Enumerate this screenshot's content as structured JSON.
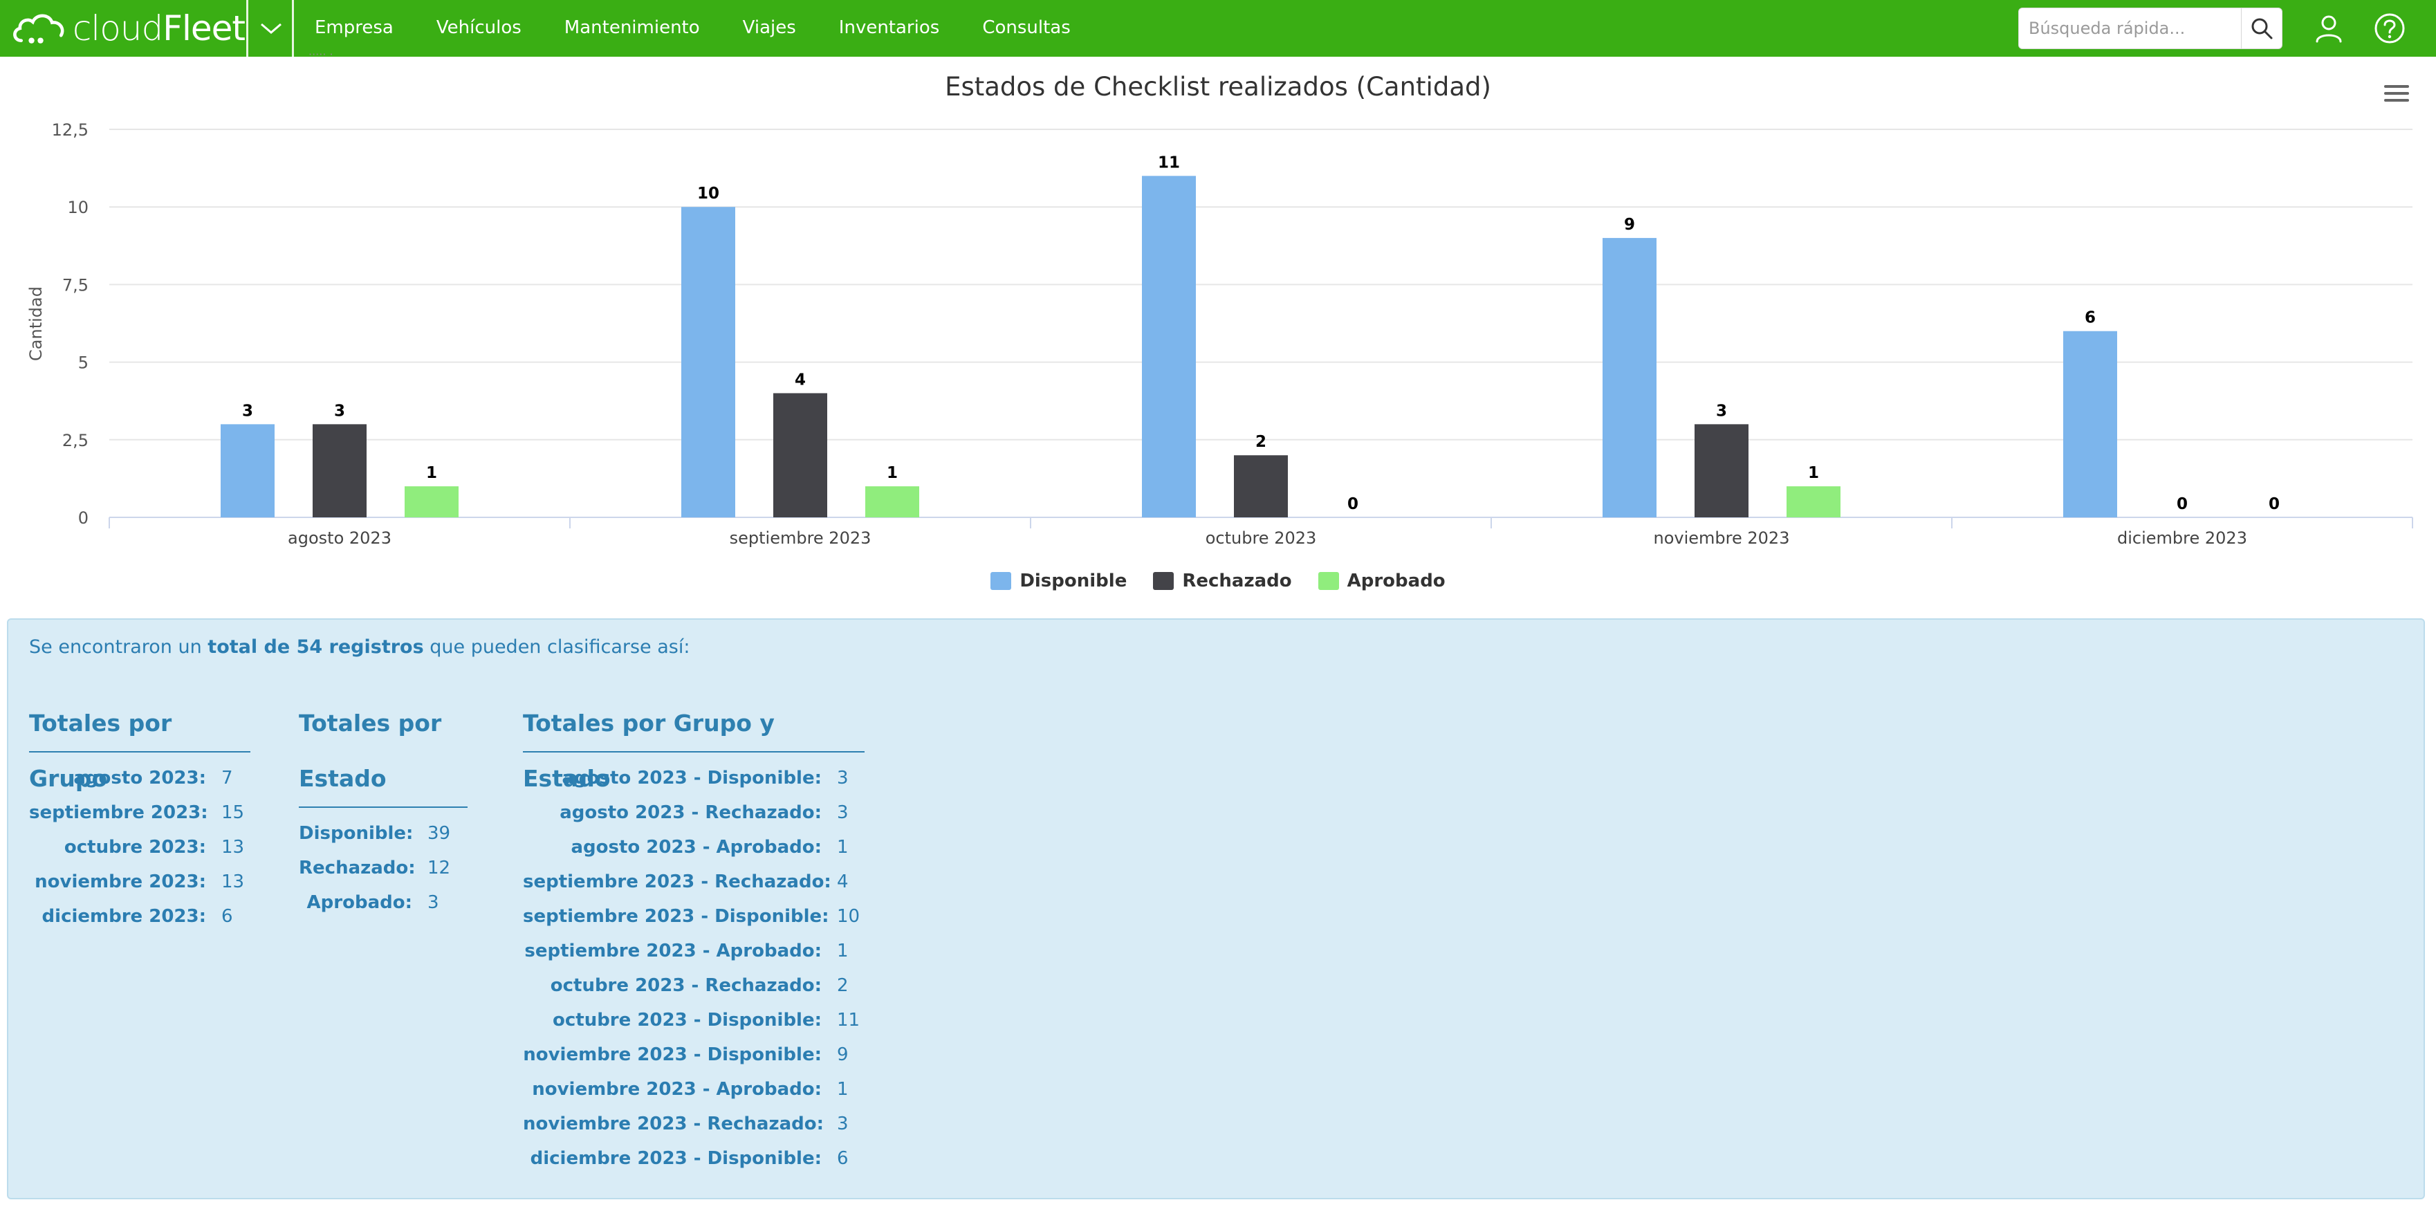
{
  "app": {
    "logo_prefix": "cloud",
    "logo_suffix": "Fleet"
  },
  "nav": {
    "items": [
      "Empresa",
      "Vehículos",
      "Mantenimiento",
      "Viajes",
      "Inventarios",
      "Consultas"
    ],
    "search_placeholder": "Búsqueda rápida...",
    "peek_text": "····· ·"
  },
  "colors": {
    "brand": "#3aae14",
    "disponible": "#7cb5ec",
    "rechazado": "#434348",
    "aprobado": "#90ed7d",
    "panel": "#d9ecf6",
    "panel_text": "#2b7db1"
  },
  "chart_data": {
    "type": "bar",
    "title": "Estados de Checklist realizados (Cantidad)",
    "xlabel": "",
    "ylabel": "Cantidad",
    "ylim": [
      0,
      12.5
    ],
    "yticks": [
      "0",
      "2,5",
      "5",
      "7,5",
      "10",
      "12,5"
    ],
    "categories": [
      "agosto 2023",
      "septiembre 2023",
      "octubre 2023",
      "noviembre 2023",
      "diciembre 2023"
    ],
    "series": [
      {
        "name": "Disponible",
        "color": "#7cb5ec",
        "values": [
          3,
          10,
          11,
          9,
          6
        ]
      },
      {
        "name": "Rechazado",
        "color": "#434348",
        "values": [
          3,
          4,
          2,
          3,
          0
        ]
      },
      {
        "name": "Aprobado",
        "color": "#90ed7d",
        "values": [
          1,
          1,
          0,
          1,
          0
        ]
      }
    ],
    "grid": true,
    "data_labels": true,
    "legend": "bottom-center"
  },
  "summary": {
    "intro_pre": "Se encontraron un ",
    "intro_bold": "total de 54 registros",
    "intro_post": " que pueden clasificarse así:",
    "groups": {
      "title": "Totales por Grupo",
      "rows": [
        {
          "k": "agosto 2023:",
          "v": "7"
        },
        {
          "k": "septiembre 2023:",
          "v": "15"
        },
        {
          "k": "octubre 2023:",
          "v": "13"
        },
        {
          "k": "noviembre 2023:",
          "v": "13"
        },
        {
          "k": "diciembre 2023:",
          "v": "6"
        }
      ]
    },
    "states": {
      "title_line1": "Totales por",
      "title_line2": "Estado",
      "rows": [
        {
          "k": "Disponible:",
          "v": "39"
        },
        {
          "k": "Rechazado:",
          "v": "12"
        },
        {
          "k": "Aprobado:",
          "v": "3"
        }
      ]
    },
    "group_state": {
      "title": "Totales por Grupo y Estado",
      "rows": [
        {
          "k": "agosto 2023 - Disponible:",
          "v": "3"
        },
        {
          "k": "agosto 2023 - Rechazado:",
          "v": "3"
        },
        {
          "k": "agosto 2023 - Aprobado:",
          "v": "1"
        },
        {
          "k": "septiembre 2023 - Rechazado:",
          "v": "4"
        },
        {
          "k": "septiembre 2023 - Disponible:",
          "v": "10"
        },
        {
          "k": "septiembre 2023 - Aprobado:",
          "v": "1"
        },
        {
          "k": "octubre 2023 - Rechazado:",
          "v": "2"
        },
        {
          "k": "octubre 2023 - Disponible:",
          "v": "11"
        },
        {
          "k": "noviembre 2023 - Disponible:",
          "v": "9"
        },
        {
          "k": "noviembre 2023 - Aprobado:",
          "v": "1"
        },
        {
          "k": "noviembre 2023 - Rechazado:",
          "v": "3"
        },
        {
          "k": "diciembre 2023 - Disponible:",
          "v": "6"
        }
      ]
    }
  }
}
